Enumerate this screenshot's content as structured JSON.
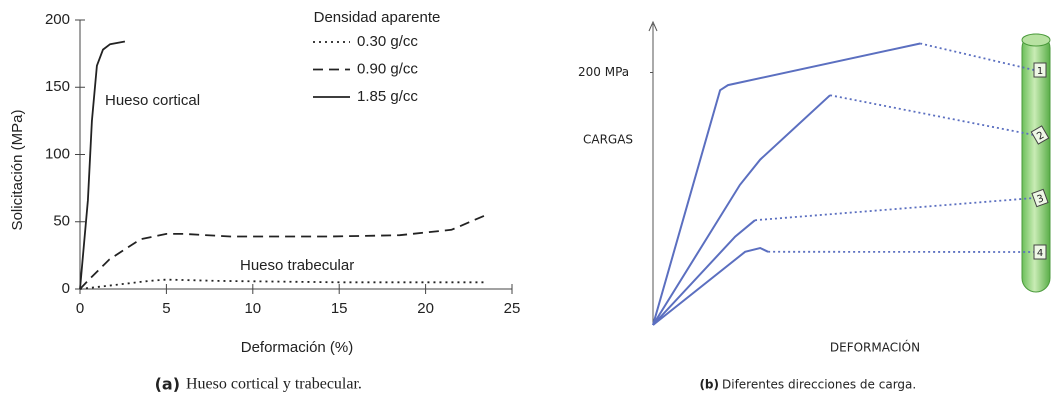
{
  "chart_data": [
    {
      "type": "line",
      "title": "Hueso cortical y trabecular.",
      "title_label": "(a)",
      "xlabel": "Deformación (%)",
      "ylabel": "Solicitación (MPa)",
      "legend_title": "Densidad aparente",
      "annotations": [
        "Hueso cortical",
        "Hueso trabecular"
      ],
      "xlim": [
        0,
        25
      ],
      "ylim": [
        0,
        200
      ],
      "xticks": [
        0,
        5,
        10,
        15,
        20,
        25
      ],
      "yticks": [
        0,
        50,
        100,
        150,
        200
      ],
      "series": [
        {
          "name": "0.30 g/cc",
          "color": "#222222",
          "dash": "dotted",
          "x": [
            0,
            2,
            4,
            5,
            8,
            15,
            23.5
          ],
          "values": [
            0,
            3,
            6,
            7,
            6,
            5,
            5
          ]
        },
        {
          "name": "0.90 g/cc",
          "color": "#222222",
          "dash": "dashed",
          "x": [
            0,
            0.6,
            1.7,
            3.5,
            5,
            6,
            8.7,
            14.5,
            18.5,
            21.5,
            23.5
          ],
          "values": [
            0,
            8,
            22,
            37,
            41,
            41,
            39,
            39,
            40,
            44,
            55
          ]
        },
        {
          "name": "1.85 g/cc",
          "color": "#222222",
          "dash": "solid",
          "x": [
            0,
            0.46,
            0.69,
            0.98,
            1.33,
            1.74,
            2.6
          ],
          "values": [
            0,
            66,
            125,
            166,
            178,
            182,
            184
          ]
        }
      ]
    },
    {
      "type": "line",
      "title": "Diferentes direcciones de carga.",
      "title_label": "(b)",
      "xlabel": "DEFORMACIÓN",
      "ylabel": "CARGAS",
      "xlim": [
        0,
        100
      ],
      "ylim": [
        0,
        240
      ],
      "yticks": [
        {
          "value": 200,
          "label": "200 MPa"
        }
      ],
      "series": [
        {
          "name": "1",
          "color": "#5b6fc0",
          "x": [
            0,
            16.9,
            18.9,
            67.3
          ],
          "values": [
            0,
            186,
            190,
            223
          ]
        },
        {
          "name": "2",
          "color": "#5b6fc0",
          "x": [
            0,
            21.9,
            27,
            44.6
          ],
          "values": [
            0,
            111,
            131,
            182
          ]
        },
        {
          "name": "3",
          "color": "#5b6fc0",
          "x": [
            0,
            20.7,
            25.7
          ],
          "values": [
            0,
            70,
            83
          ]
        },
        {
          "name": "4",
          "color": "#5b6fc0",
          "x": [
            0,
            23.2,
            27,
            29
          ],
          "values": [
            0,
            58,
            61,
            58
          ]
        }
      ]
    }
  ]
}
